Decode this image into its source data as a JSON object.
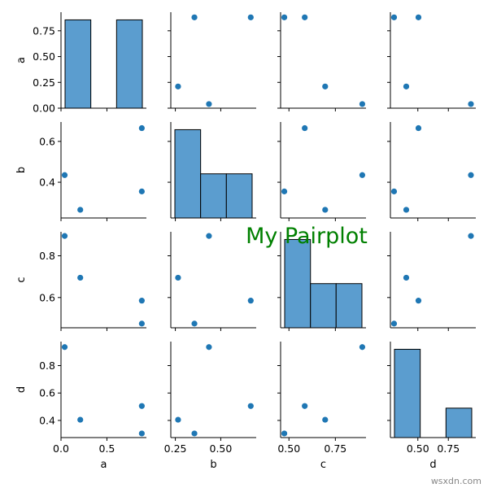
{
  "chart_data": {
    "type": "pairplot",
    "title": "My Pairplot",
    "variables": [
      "a",
      "b",
      "c",
      "d"
    ],
    "points": {
      "a": [
        0.04,
        0.21,
        0.88,
        0.88
      ],
      "b": [
        0.435,
        0.265,
        0.355,
        0.665
      ],
      "c": [
        0.895,
        0.695,
        0.475,
        0.585
      ],
      "d": [
        0.935,
        0.405,
        0.305,
        0.505
      ]
    },
    "histograms": {
      "a": {
        "bins": [
          0.04,
          0.3233,
          0.6067,
          0.89
        ],
        "counts": [
          2,
          0,
          2
        ]
      },
      "b": {
        "bins": [
          0.265,
          0.4,
          0.535,
          0.67
        ],
        "counts": [
          2,
          1,
          1
        ]
      },
      "c": {
        "bins": [
          0.475,
          0.617,
          0.758,
          0.9
        ],
        "counts": [
          2,
          1,
          1
        ]
      },
      "d": {
        "bins": [
          0.305,
          0.52,
          0.735,
          0.95
        ],
        "counts": [
          3,
          0,
          1
        ]
      }
    },
    "axis_ranges": {
      "a": [
        0.0,
        0.93
      ],
      "b": [
        0.225,
        0.695
      ],
      "c": [
        0.455,
        0.915
      ],
      "d": [
        0.275,
        0.975
      ]
    },
    "ticks": {
      "a": [
        0.0,
        0.25,
        0.5,
        0.75
      ],
      "b": [
        0.4,
        0.6
      ],
      "c": [
        0.6,
        0.8
      ],
      "d": [
        0.4,
        0.6,
        0.8
      ]
    },
    "x_ticks": {
      "a": [
        0.0,
        0.5
      ],
      "b": [
        0.25,
        0.5
      ],
      "c": [
        0.5,
        0.75
      ],
      "d": [
        0.5,
        0.75
      ]
    },
    "y_ticks": {
      "a": [
        0.0,
        0.25,
        0.5,
        0.75
      ],
      "b": [
        0.4,
        0.6
      ],
      "c": [
        0.6,
        0.8
      ],
      "d": [
        0.4,
        0.6,
        0.8
      ]
    },
    "tick_text": {
      "a": [
        "0.00",
        "0.25",
        "0.50",
        "0.75"
      ],
      "b": [
        "0.4",
        "0.6"
      ],
      "c": [
        "0.6",
        "0.8"
      ],
      "d": [
        "0.4",
        "0.6",
        "0.8"
      ]
    },
    "x_tick_text": {
      "a": [
        "0.0",
        "0.5"
      ],
      "b": [
        "0.25",
        "0.50"
      ],
      "c": [
        "0.50",
        "0.75"
      ],
      "d": [
        "0.50",
        "0.75"
      ]
    },
    "colors": {
      "point": "#1f77b4",
      "bar": "#5b9dcf",
      "title": "#008000"
    },
    "grid": false
  },
  "watermark": "wsxdn.com"
}
